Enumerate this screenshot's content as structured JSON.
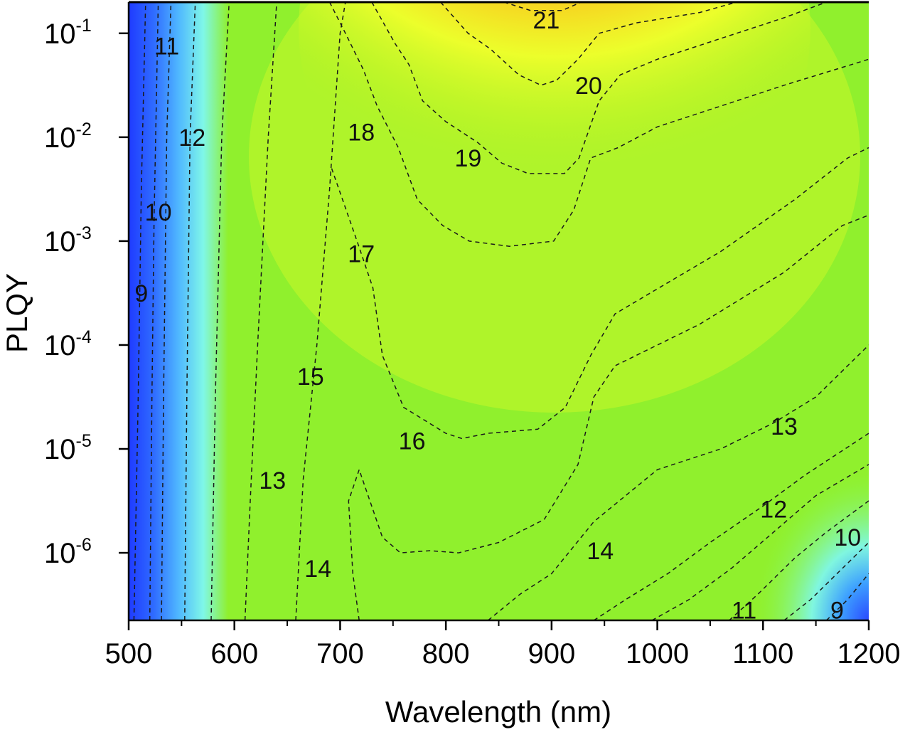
{
  "chart_data": {
    "type": "heatmap",
    "title": "",
    "xlabel": "Wavelength (nm)",
    "ylabel": "PLQY",
    "xlim": [
      500,
      1200
    ],
    "ylim_log10": [
      -6.65,
      -0.7
    ],
    "y_scale": "log",
    "x_ticks": [
      500,
      600,
      700,
      800,
      900,
      1000,
      1100,
      1200
    ],
    "x_tick_labels": [
      "500",
      "600",
      "700",
      "800",
      "900",
      "1000",
      "1100",
      "1200"
    ],
    "y_ticks": [
      {
        "base": "10",
        "exp": "-1"
      },
      {
        "base": "10",
        "exp": "-2"
      },
      {
        "base": "10",
        "exp": "-3"
      },
      {
        "base": "10",
        "exp": "-4"
      },
      {
        "base": "10",
        "exp": "-5"
      },
      {
        "base": "10",
        "exp": "-6"
      }
    ],
    "colormap": "jet",
    "contours": [
      {
        "level": 9,
        "points": [
          [
            505,
            -6.65
          ],
          [
            509,
            -4.5
          ],
          [
            512,
            -2.5
          ],
          [
            516,
            -0.7
          ]
        ]
      },
      {
        "level": 10,
        "points": [
          [
            520,
            -6.65
          ],
          [
            522,
            -4.5
          ],
          [
            524,
            -2.8
          ],
          [
            528,
            -0.7
          ]
        ]
      },
      {
        "level": 11,
        "points": [
          [
            531,
            -6.65
          ],
          [
            533,
            -4.5
          ],
          [
            536,
            -2.0
          ],
          [
            540,
            -0.7
          ]
        ]
      },
      {
        "level": 12,
        "points": [
          [
            553,
            -6.65
          ],
          [
            555,
            -4.5
          ],
          [
            558,
            -2.0
          ],
          [
            563,
            -0.7
          ]
        ]
      },
      {
        "level": 13,
        "points": [
          [
            578,
            -6.65
          ],
          [
            582,
            -4.5
          ],
          [
            588,
            -2.0
          ],
          [
            595,
            -0.7
          ]
        ]
      },
      {
        "level": 14,
        "points": [
          [
            610,
            -6.65
          ],
          [
            615,
            -5.5
          ],
          [
            622,
            -4.0
          ],
          [
            632,
            -2.0
          ],
          [
            640,
            -0.7
          ]
        ]
      },
      {
        "level": 15,
        "points": [
          [
            658,
            -6.65
          ],
          [
            665,
            -5.3
          ],
          [
            678,
            -4.0
          ],
          [
            690,
            -2.5
          ],
          [
            700,
            -1.0
          ],
          [
            705,
            -0.7
          ]
        ]
      },
      {
        "level": 16,
        "points": [
          [
            718,
            -6.65
          ],
          [
            712,
            -6.2
          ],
          [
            708,
            -5.5
          ],
          [
            718,
            -5.2
          ],
          [
            740,
            -5.85
          ],
          [
            757,
            -6.0
          ],
          [
            785,
            -5.98
          ],
          [
            812,
            -6.0
          ],
          [
            850,
            -5.9
          ],
          [
            893,
            -5.68
          ],
          [
            925,
            -5.15
          ],
          [
            940,
            -4.5
          ],
          [
            960,
            -4.2
          ],
          [
            1040,
            -3.8
          ],
          [
            1120,
            -3.3
          ],
          [
            1175,
            -2.85
          ],
          [
            1200,
            -2.75
          ]
        ]
      },
      {
        "level": 17,
        "points": [
          [
            692,
            -2.3
          ],
          [
            716,
            -3.0
          ],
          [
            731,
            -3.45
          ],
          [
            740,
            -4.1
          ],
          [
            760,
            -4.6
          ],
          [
            800,
            -4.85
          ],
          [
            815,
            -4.9
          ],
          [
            840,
            -4.85
          ],
          [
            887,
            -4.81
          ],
          [
            913,
            -4.6
          ],
          [
            937,
            -4.1
          ],
          [
            960,
            -3.7
          ],
          [
            1010,
            -3.4
          ],
          [
            1060,
            -3.1
          ],
          [
            1130,
            -2.6
          ],
          [
            1180,
            -2.2
          ],
          [
            1200,
            -2.1
          ]
        ]
      },
      {
        "level": 18,
        "points": [
          [
            690,
            -0.7
          ],
          [
            705,
            -1.0
          ],
          [
            722,
            -1.35
          ],
          [
            735,
            -1.7
          ],
          [
            755,
            -2.1
          ],
          [
            773,
            -2.6
          ],
          [
            797,
            -2.85
          ],
          [
            822,
            -3.0
          ],
          [
            860,
            -3.05
          ],
          [
            902,
            -3.0
          ],
          [
            921,
            -2.7
          ],
          [
            937,
            -2.2
          ],
          [
            963,
            -2.1
          ],
          [
            1000,
            -1.9
          ],
          [
            1060,
            -1.7
          ],
          [
            1120,
            -1.5
          ],
          [
            1200,
            -1.25
          ]
        ]
      },
      {
        "level": 19,
        "points": [
          [
            730,
            -0.7
          ],
          [
            752,
            -1.1
          ],
          [
            765,
            -1.3
          ],
          [
            778,
            -1.65
          ],
          [
            800,
            -1.85
          ],
          [
            830,
            -2.05
          ],
          [
            853,
            -2.25
          ],
          [
            878,
            -2.35
          ],
          [
            912,
            -2.35
          ],
          [
            926,
            -2.2
          ],
          [
            945,
            -1.65
          ],
          [
            965,
            -1.4
          ],
          [
            1000,
            -1.25
          ],
          [
            1060,
            -1.05
          ],
          [
            1120,
            -0.85
          ],
          [
            1160,
            -0.7
          ]
        ]
      },
      {
        "level": 20,
        "points": [
          [
            795,
            -0.7
          ],
          [
            808,
            -0.85
          ],
          [
            821,
            -1.0
          ],
          [
            842,
            -1.15
          ],
          [
            869,
            -1.4
          ],
          [
            890,
            -1.5
          ],
          [
            905,
            -1.45
          ],
          [
            925,
            -1.25
          ],
          [
            945,
            -1.0
          ],
          [
            980,
            -0.9
          ],
          [
            1040,
            -0.8
          ],
          [
            1075,
            -0.7
          ]
        ]
      },
      {
        "level": 21,
        "points": [
          [
            855,
            -0.7
          ],
          [
            880,
            -0.78
          ],
          [
            910,
            -0.78
          ],
          [
            928,
            -0.7
          ]
        ]
      },
      {
        "level": 14,
        "points": [
          [
            840,
            -6.65
          ],
          [
            870,
            -6.4
          ],
          [
            900,
            -6.2
          ],
          [
            940,
            -5.7
          ],
          [
            970,
            -5.45
          ],
          [
            1000,
            -5.2
          ],
          [
            1060,
            -5.0
          ],
          [
            1110,
            -4.75
          ],
          [
            1150,
            -4.5
          ],
          [
            1200,
            -4.0
          ]
        ]
      },
      {
        "level": 13,
        "points": [
          [
            940,
            -6.65
          ],
          [
            970,
            -6.45
          ],
          [
            1010,
            -6.2
          ],
          [
            1050,
            -5.9
          ],
          [
            1100,
            -5.55
          ],
          [
            1140,
            -5.25
          ],
          [
            1200,
            -4.85
          ]
        ]
      },
      {
        "level": 12,
        "points": [
          [
            995,
            -6.65
          ],
          [
            1030,
            -6.45
          ],
          [
            1070,
            -6.15
          ],
          [
            1110,
            -5.8
          ],
          [
            1150,
            -5.45
          ],
          [
            1200,
            -5.15
          ]
        ]
      },
      {
        "level": 11,
        "points": [
          [
            1068,
            -6.65
          ],
          [
            1095,
            -6.4
          ],
          [
            1130,
            -6.05
          ],
          [
            1160,
            -5.8
          ],
          [
            1200,
            -5.5
          ]
        ]
      },
      {
        "level": 10,
        "points": [
          [
            1120,
            -6.65
          ],
          [
            1145,
            -6.45
          ],
          [
            1180,
            -6.1
          ],
          [
            1200,
            -5.9
          ]
        ]
      },
      {
        "level": 9,
        "points": [
          [
            1160,
            -6.65
          ],
          [
            1180,
            -6.45
          ],
          [
            1200,
            -6.2
          ]
        ]
      }
    ],
    "contour_labels": [
      {
        "text": "21",
        "x": 895,
        "y": -0.87
      },
      {
        "text": "20",
        "x": 935,
        "y": -1.5
      },
      {
        "text": "11",
        "x": 536,
        "y": -1.12
      },
      {
        "text": "12",
        "x": 560,
        "y": -2.0
      },
      {
        "text": "18",
        "x": 720,
        "y": -1.95
      },
      {
        "text": "19",
        "x": 821,
        "y": -2.2
      },
      {
        "text": "10",
        "x": 528,
        "y": -2.72
      },
      {
        "text": "17",
        "x": 720,
        "y": -3.12
      },
      {
        "text": "9",
        "x": 512,
        "y": -3.5
      },
      {
        "text": "15",
        "x": 672,
        "y": -4.3
      },
      {
        "text": "16",
        "x": 768,
        "y": -4.92
      },
      {
        "text": "13",
        "x": 1120,
        "y": -4.78
      },
      {
        "text": "13",
        "x": 636,
        "y": -5.3
      },
      {
        "text": "12",
        "x": 1110,
        "y": -5.58
      },
      {
        "text": "10",
        "x": 1180,
        "y": -5.85
      },
      {
        "text": "14",
        "x": 946,
        "y": -5.98
      },
      {
        "text": "14",
        "x": 679,
        "y": -6.15
      },
      {
        "text": "11",
        "x": 1082,
        "y": -6.55
      },
      {
        "text": "9",
        "x": 1170,
        "y": -6.55
      }
    ]
  }
}
